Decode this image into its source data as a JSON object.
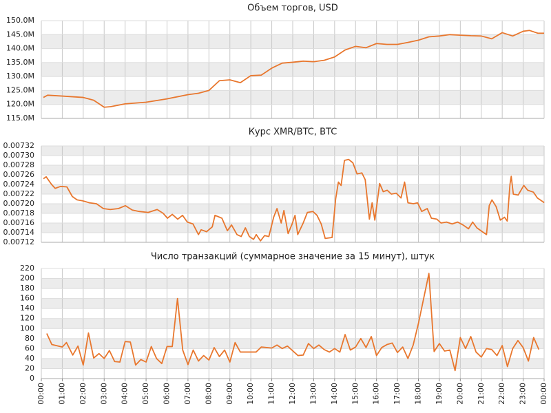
{
  "chart_data": [
    {
      "type": "line",
      "title": "Объем торгов, USD",
      "color": "#e8772e",
      "grid": true,
      "x": [
        0.1,
        0.3,
        1,
        2,
        2.5,
        3,
        3.3,
        4,
        5,
        6,
        7,
        7.5,
        8,
        8.5,
        9,
        9.5,
        10,
        10.5,
        11,
        11.5,
        12,
        12.5,
        13,
        13.5,
        14,
        14.5,
        15,
        15.5,
        16,
        16.5,
        17,
        17.5,
        18,
        18.5,
        19,
        19.5,
        20,
        20.5,
        21,
        21.5,
        22,
        22.5,
        23,
        23.3,
        23.7,
        24
      ],
      "values": [
        122500000,
        123300000,
        123000000,
        122500000,
        121500000,
        119000000,
        119200000,
        120200000,
        120800000,
        122000000,
        123500000,
        124000000,
        125000000,
        128500000,
        128800000,
        127800000,
        130300000,
        130500000,
        133000000,
        134800000,
        135100000,
        135500000,
        135300000,
        135800000,
        137000000,
        139500000,
        140800000,
        140300000,
        141800000,
        141500000,
        141500000,
        142200000,
        143000000,
        144200000,
        144500000,
        145000000,
        144800000,
        144600000,
        144500000,
        143500000,
        145700000,
        144500000,
        146200000,
        146500000,
        145500000,
        145500000
      ],
      "xlim": [
        0,
        24
      ],
      "ylim": [
        115000000,
        150000000
      ],
      "yticks": [
        {
          "value": 115000000,
          "label": "115.0M"
        },
        {
          "value": 120000000,
          "label": "120.0M"
        },
        {
          "value": 125000000,
          "label": "125.0M"
        },
        {
          "value": 130000000,
          "label": "130.0M"
        },
        {
          "value": 135000000,
          "label": "135.0M"
        },
        {
          "value": 140000000,
          "label": "140.0M"
        },
        {
          "value": 145000000,
          "label": "145.0M"
        },
        {
          "value": 150000000,
          "label": "150.0M"
        }
      ]
    },
    {
      "type": "line",
      "title": "Курс XMR/BTC, BTC",
      "color": "#e8772e",
      "grid": true,
      "x": [
        0.1,
        0.23,
        0.49,
        0.66,
        0.92,
        1.22,
        1.48,
        1.71,
        1.97,
        2.3,
        2.63,
        2.96,
        3.29,
        3.68,
        4.01,
        4.34,
        4.67,
        5.1,
        5.53,
        5.82,
        6.02,
        6.25,
        6.51,
        6.74,
        6.97,
        7.24,
        7.5,
        7.63,
        7.89,
        8.16,
        8.29,
        8.62,
        8.88,
        9.08,
        9.34,
        9.54,
        9.74,
        9.93,
        10.13,
        10.26,
        10.46,
        10.66,
        10.86,
        11.09,
        11.25,
        11.45,
        11.58,
        11.78,
        11.97,
        12.11,
        12.24,
        12.5,
        12.7,
        12.96,
        13.16,
        13.36,
        13.55,
        13.88,
        14.05,
        14.18,
        14.31,
        14.47,
        14.67,
        14.87,
        15.07,
        15.3,
        15.46,
        15.66,
        15.79,
        15.92,
        16.15,
        16.32,
        16.51,
        16.71,
        16.94,
        17.17,
        17.34,
        17.5,
        17.76,
        17.96,
        18.16,
        18.42,
        18.62,
        18.88,
        19.08,
        19.34,
        19.61,
        19.87,
        20.13,
        20.39,
        20.59,
        20.79,
        21.05,
        21.25,
        21.38,
        21.51,
        21.71,
        21.91,
        22.11,
        22.24,
        22.37,
        22.43,
        22.53,
        22.76,
        23.03,
        23.22,
        23.49,
        23.68,
        23.95,
        24
      ],
      "values": [
        0.007252,
        0.007256,
        0.00724,
        0.007232,
        0.007236,
        0.007235,
        0.007215,
        0.007208,
        0.007206,
        0.007202,
        0.0072,
        0.00719,
        0.007188,
        0.00719,
        0.007196,
        0.007187,
        0.007184,
        0.007182,
        0.007188,
        0.00718,
        0.00717,
        0.007178,
        0.007168,
        0.007176,
        0.007162,
        0.007158,
        0.007136,
        0.007146,
        0.007142,
        0.007152,
        0.007176,
        0.00717,
        0.007144,
        0.007156,
        0.007136,
        0.007132,
        0.00715,
        0.007132,
        0.007126,
        0.007136,
        0.007123,
        0.007134,
        0.007132,
        0.007172,
        0.00719,
        0.00716,
        0.007186,
        0.007138,
        0.007158,
        0.007176,
        0.007136,
        0.00716,
        0.007182,
        0.007184,
        0.007176,
        0.007158,
        0.007128,
        0.00713,
        0.00721,
        0.007245,
        0.007238,
        0.00729,
        0.007292,
        0.007285,
        0.007262,
        0.007264,
        0.00725,
        0.007168,
        0.007202,
        0.007166,
        0.007242,
        0.007225,
        0.007228,
        0.00722,
        0.007222,
        0.007212,
        0.007245,
        0.007202,
        0.0072,
        0.007202,
        0.007184,
        0.00719,
        0.00717,
        0.007168,
        0.00716,
        0.007162,
        0.007158,
        0.007162,
        0.007156,
        0.007148,
        0.007162,
        0.00715,
        0.007142,
        0.007136,
        0.007196,
        0.007208,
        0.007194,
        0.007166,
        0.007172,
        0.007164,
        0.00724,
        0.007257,
        0.00722,
        0.007218,
        0.007238,
        0.007228,
        0.007224,
        0.007212,
        0.007204,
        0.007202
      ],
      "xlim": [
        0,
        24
      ],
      "ylim": [
        0.00712,
        0.00732
      ],
      "yticks": [
        0.00712,
        0.00714,
        0.00716,
        0.00718,
        {
          "value": 0.0072,
          "label": "0.00720"
        },
        0.00722,
        0.00724,
        0.00726,
        0.00728,
        {
          "value": 0.0073,
          "label": "0.00730"
        },
        0.00732
      ]
    },
    {
      "type": "line",
      "title": "Число транзакций (суммарное значение за 15 минут), штук",
      "color": "#e8772e",
      "grid": true,
      "x": [
        0.26,
        0.5,
        1,
        1.2,
        1.5,
        1.75,
        2,
        2.25,
        2.5,
        2.75,
        3,
        3.25,
        3.5,
        3.75,
        4,
        4.25,
        4.5,
        4.75,
        5,
        5.25,
        5.5,
        5.75,
        6,
        6.25,
        6.5,
        6.75,
        7,
        7.25,
        7.5,
        7.75,
        8,
        8.25,
        8.5,
        8.75,
        9,
        9.25,
        9.5,
        10.25,
        10.5,
        11,
        11.25,
        11.5,
        11.75,
        12.25,
        12.5,
        12.75,
        13,
        13.25,
        13.5,
        13.75,
        14,
        14.25,
        14.5,
        14.75,
        15,
        15.25,
        15.5,
        15.75,
        16,
        16.25,
        16.5,
        16.75,
        17,
        17.25,
        17.5,
        17.75,
        18,
        18.5,
        18.75,
        19,
        19.25,
        19.5,
        19.75,
        20,
        20.25,
        20.5,
        20.75,
        21,
        21.25,
        21.5,
        21.75,
        22,
        22.25,
        22.5,
        22.75,
        23,
        23.25,
        23.5,
        23.75
      ],
      "values": [
        90,
        68,
        63,
        72,
        47,
        65,
        27,
        91,
        41,
        50,
        40,
        56,
        34,
        33,
        74,
        73,
        27,
        38,
        33,
        64,
        40,
        30,
        64,
        64,
        160,
        57,
        28,
        57,
        35,
        46,
        37,
        62,
        44,
        57,
        33,
        72,
        53,
        53,
        63,
        61,
        67,
        60,
        65,
        46,
        47,
        70,
        60,
        67,
        58,
        53,
        60,
        53,
        88,
        57,
        63,
        80,
        62,
        84,
        46,
        62,
        68,
        71,
        52,
        63,
        40,
        67,
        110,
        210,
        54,
        70,
        55,
        57,
        16,
        82,
        60,
        84,
        53,
        43,
        60,
        58,
        46,
        66,
        24,
        60,
        76,
        62,
        35,
        82,
        58
      ],
      "xlim": [
        0,
        24
      ],
      "ylim": [
        0,
        220
      ],
      "yticks": [
        0,
        20,
        40,
        60,
        80,
        100,
        120,
        140,
        160,
        180,
        200,
        220
      ],
      "xticks": [
        {
          "value": 0,
          "label": "00:00"
        },
        {
          "value": 1,
          "label": "01:00"
        },
        {
          "value": 2,
          "label": "02:00"
        },
        {
          "value": 3,
          "label": "03:00"
        },
        {
          "value": 4,
          "label": "04:00"
        },
        {
          "value": 5,
          "label": "05:00"
        },
        {
          "value": 6,
          "label": "06:00"
        },
        {
          "value": 7,
          "label": "07:00"
        },
        {
          "value": 8,
          "label": "08:00"
        },
        {
          "value": 9,
          "label": "09:00"
        },
        {
          "value": 10,
          "label": "10:00"
        },
        {
          "value": 11,
          "label": "11:00"
        },
        {
          "value": 12,
          "label": "12:00"
        },
        {
          "value": 13,
          "label": "13:00"
        },
        {
          "value": 14,
          "label": "14:00"
        },
        {
          "value": 15,
          "label": "15:00"
        },
        {
          "value": 16,
          "label": "16:00"
        },
        {
          "value": 17,
          "label": "17:00"
        },
        {
          "value": 18,
          "label": "18:00"
        },
        {
          "value": 19,
          "label": "19:00"
        },
        {
          "value": 20,
          "label": "20:00"
        },
        {
          "value": 21,
          "label": "21:00"
        },
        {
          "value": 22,
          "label": "22:00"
        },
        {
          "value": 23,
          "label": "23:00"
        },
        {
          "value": 24,
          "label": "00:00"
        }
      ]
    }
  ]
}
